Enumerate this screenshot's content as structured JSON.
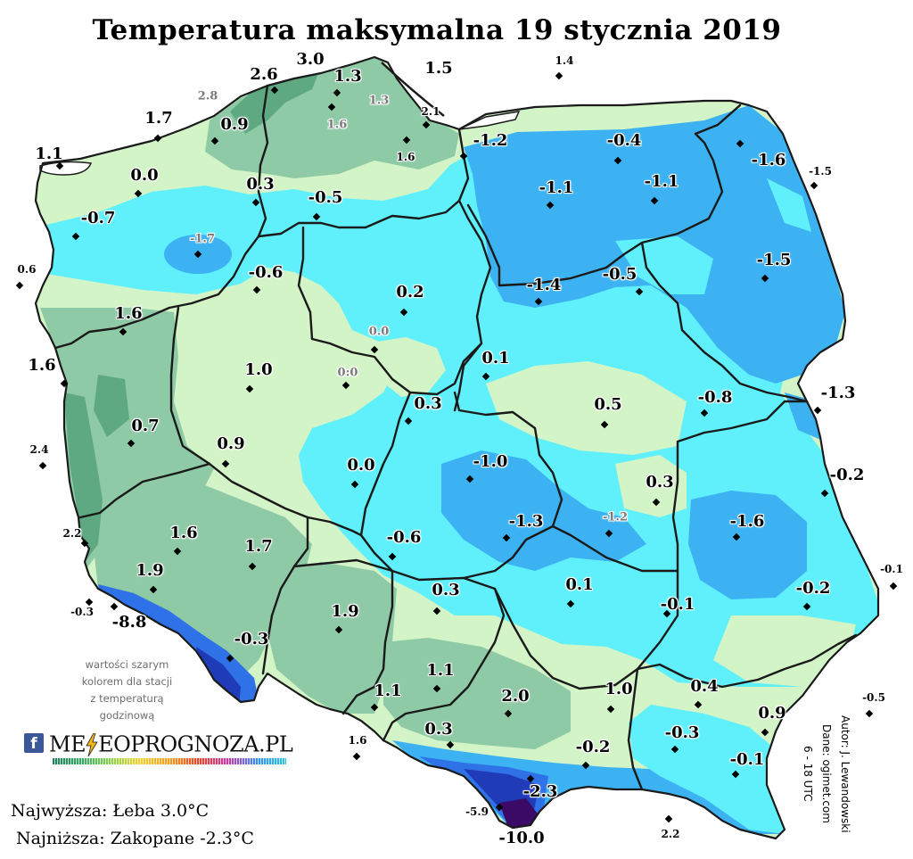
{
  "title": "Temperatura maksymalna 19 stycznia 2019",
  "stations": [
    "3.0",
    "2.6",
    "1.3",
    "1.5",
    "1.4",
    "2.8",
    "0.9",
    "1.3",
    "1.6",
    "2.1",
    "1.7",
    "1.6",
    "1.1",
    "-1.2",
    "-0.4",
    "-1.6",
    "-1.5",
    "0.0",
    "0.3",
    "-0.5",
    "-1.1",
    "-1.1",
    "-0.7",
    "-1.7",
    "0.6",
    "-0.6",
    "-1.5",
    "0.2",
    "-1.4",
    "-0.5",
    "1.6",
    "0.0",
    "1.6",
    "0.1",
    "1.0",
    "0:0",
    "-0.8",
    "-1.3",
    "0.3",
    "0.5",
    "0.7",
    "2.4",
    "0.9",
    "-1.0",
    "-0.2",
    "0.0",
    "0.3",
    "-1.3",
    "-1.2",
    "-1.6",
    "2.2",
    "1.6",
    "-0.6",
    "1.7",
    "1.9",
    "-0.1",
    "-0.2",
    "0.3",
    "0.1",
    "-0.1",
    "-0.3",
    "-8.8",
    "1.9",
    "-0.3",
    "1.1",
    "1.1",
    "1.0",
    "0.4",
    "-0.5",
    "2.0",
    "0.9",
    "1.6",
    "0.3",
    "-0.3",
    "-0.2",
    "-0.1",
    "-2.3",
    "-5.9",
    "2.2",
    "-10.0"
  ],
  "legend_note": [
    "wartości szarym",
    "kolorem dla stacji",
    "z temperaturą",
    "godzinową"
  ],
  "logo": {
    "facebook": "f",
    "part1": "ME",
    "part2": "EOPROGNOZA.PL"
  },
  "extremes": {
    "max": "Najwyższa: Łeba 3.0°C",
    "min": "Najniższa: Zakopane -2.3°C"
  },
  "credits": [
    "Autor: J. Lewandowski",
    "Dane: ogimet.com",
    "6 - 18 UTC"
  ],
  "colors": {
    "light_green": "#d2f4c6",
    "medium_green": "#8fcaa6",
    "dark_green": "#5fa982",
    "cyan": "#5ff0fc",
    "blue": "#3cb2f2",
    "mountain_blue": "#2f72e8",
    "deep_blue": "#1f3bb8",
    "purple": "#3b0a66",
    "border": "#1a1a1a"
  }
}
